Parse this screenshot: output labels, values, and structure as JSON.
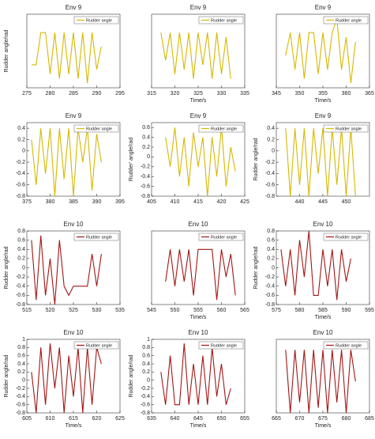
{
  "chart_data": [
    {
      "type": "line",
      "title": "Env 9",
      "ylabel": "Rudder angle/rad",
      "xlim": [
        275,
        295
      ],
      "xticks": [
        275,
        280,
        285,
        290,
        295
      ],
      "ylim": [
        -0.8,
        0.8
      ],
      "series": [
        {
          "name": "Rudder angle",
          "color": "#d6b800",
          "x": [
            276,
            277,
            278,
            279,
            280,
            281,
            282,
            283,
            284,
            285,
            286,
            287,
            288,
            289,
            290,
            291
          ],
          "values": [
            -0.3,
            -0.3,
            0.4,
            0.4,
            -0.5,
            0.4,
            -0.6,
            0.4,
            -0.5,
            0.4,
            -0.6,
            0.4,
            -0.7,
            0.4,
            -0.4,
            0.1
          ]
        }
      ]
    },
    {
      "type": "line",
      "title": "Env 9",
      "xlabel": "Time/s",
      "xlim": [
        315,
        335
      ],
      "xticks": [
        315,
        320,
        325,
        330,
        335
      ],
      "ylim": [
        -0.8,
        0.8
      ],
      "series": [
        {
          "name": "Rudder angle",
          "color": "#d6b800",
          "x": [
            317,
            318,
            319,
            320,
            321,
            322,
            323,
            324,
            325,
            326,
            327,
            328,
            329,
            330,
            331,
            332
          ],
          "values": [
            0.4,
            -0.2,
            0.4,
            -0.5,
            0.4,
            -0.4,
            0.4,
            -0.6,
            0.4,
            -0.3,
            0.4,
            -0.6,
            0.4,
            -0.5,
            0.3,
            -0.6
          ]
        }
      ]
    },
    {
      "type": "line",
      "title": "Env 9",
      "xlabel": "Time/s",
      "xlim": [
        345,
        365
      ],
      "xticks": [
        345,
        350,
        355,
        360,
        365
      ],
      "ylim": [
        -0.8,
        0.8
      ],
      "series": [
        {
          "name": "Rudder angle",
          "color": "#d6b800",
          "x": [
            347,
            348,
            349,
            350,
            351,
            352,
            353,
            354,
            355,
            356,
            357,
            358,
            359,
            360,
            361,
            362
          ],
          "values": [
            -0.1,
            0.4,
            -0.4,
            0.4,
            -0.6,
            0.4,
            0.4,
            -0.5,
            0.4,
            -0.4,
            0.4,
            0.7,
            -0.4,
            0.3,
            -0.7,
            0.2
          ]
        }
      ]
    },
    {
      "type": "line",
      "title": "Env 9",
      "xlim": [
        375,
        395
      ],
      "xticks": [
        375,
        380,
        385,
        390,
        395
      ],
      "ylim": [
        -0.8,
        0.5
      ],
      "yticks": [
        -0.8,
        -0.6,
        -0.4,
        -0.2,
        0,
        0.2,
        0.4
      ],
      "series": [
        {
          "name": "Rudder angle",
          "color": "#d6b800",
          "x": [
            376,
            377,
            378,
            379,
            380,
            381,
            382,
            383,
            384,
            385,
            386,
            387,
            388,
            389,
            390,
            391
          ],
          "values": [
            0.2,
            -0.6,
            0.4,
            -0.4,
            0.4,
            -0.8,
            0.4,
            -0.5,
            0.4,
            -0.8,
            0.4,
            -0.2,
            0.4,
            -0.7,
            0.3,
            -0.2
          ]
        }
      ]
    },
    {
      "type": "line",
      "title": "Env 9",
      "ylabel": "Rudder' angle/rad",
      "xlim": [
        405,
        425
      ],
      "xticks": [
        405,
        410,
        415,
        420,
        425
      ],
      "ylim": [
        -0.8,
        0.7
      ],
      "yticks": [
        -0.8,
        -0.6,
        -0.4,
        -0.2,
        0,
        0.2,
        0.4,
        0.6
      ],
      "series": [
        {
          "name": "Rudder angle",
          "color": "#d6b800",
          "x": [
            408,
            409,
            410,
            411,
            412,
            413,
            414,
            415,
            416,
            417,
            418,
            419,
            420,
            421,
            422,
            423
          ],
          "values": [
            0.4,
            -0.2,
            0.6,
            -0.4,
            0.4,
            -0.6,
            0.5,
            -0.2,
            0.4,
            -0.8,
            0.4,
            -0.4,
            0.6,
            -0.6,
            0.2,
            -0.3
          ]
        }
      ]
    },
    {
      "type": "line",
      "title": "Env 9",
      "ylabel": "Rudder angle/rad",
      "xlim": [
        435,
        455
      ],
      "xticks": [
        440,
        445,
        450
      ],
      "ylim": [
        -0.8,
        0.5
      ],
      "yticks": [
        -0.8,
        -0.6,
        -0.4,
        -0.2,
        0,
        0.2,
        0.4
      ],
      "series": [
        {
          "name": "Rudder angle",
          "color": "#d6b800",
          "x": [
            437,
            438,
            439,
            440,
            441,
            442,
            443,
            444,
            445,
            446,
            447,
            448,
            449,
            450,
            451,
            452
          ],
          "values": [
            0.4,
            -0.8,
            0.4,
            -0.6,
            0.4,
            -0.8,
            0.4,
            -0.4,
            0.4,
            -0.8,
            0.4,
            -0.6,
            0.4,
            -0.8,
            0.4,
            -0.8
          ]
        }
      ]
    },
    {
      "type": "line",
      "title": "Env 10",
      "ylabel": "Rudder angle/rad",
      "xlim": [
        515,
        535
      ],
      "xticks": [
        515,
        520,
        525,
        530,
        535
      ],
      "ylim": [
        -0.8,
        0.8
      ],
      "yticks": [
        -0.8,
        -0.6,
        -0.4,
        -0.2,
        0,
        0.2,
        0.4,
        0.6,
        0.8
      ],
      "series": [
        {
          "name": "Rudder angle",
          "color": "#a31515",
          "x": [
            516,
            517,
            518,
            519,
            520,
            521,
            522,
            523,
            524,
            525,
            526,
            527,
            528,
            529,
            530,
            531
          ],
          "values": [
            0.6,
            -0.7,
            0.7,
            -0.6,
            0.2,
            -0.8,
            0.6,
            -0.4,
            -0.6,
            -0.4,
            -0.4,
            -0.4,
            -0.4,
            0.3,
            -0.4,
            0.3
          ]
        }
      ]
    },
    {
      "type": "line",
      "title": "Env 10",
      "xlabel": "Time/s",
      "xlim": [
        545,
        565
      ],
      "xticks": [
        545,
        550,
        555,
        560,
        565
      ],
      "ylim": [
        -0.8,
        0.8
      ],
      "series": [
        {
          "name": "Rudder angle",
          "color": "#a31515",
          "x": [
            548,
            549,
            550,
            551,
            552,
            553,
            554,
            555,
            556,
            557,
            558,
            559,
            560,
            561,
            562,
            563
          ],
          "values": [
            -0.3,
            0.4,
            -0.4,
            0.4,
            -0.3,
            0.4,
            -0.6,
            0.4,
            0.4,
            0.4,
            0.4,
            -0.7,
            0.4,
            -0.2,
            0.3,
            -0.6
          ]
        }
      ]
    },
    {
      "type": "line",
      "title": "Env 10",
      "ylabel": "Rudder angle/rad",
      "xlabel": "Time/s",
      "xlim": [
        575,
        595
      ],
      "xticks": [
        575,
        580,
        585,
        590,
        595
      ],
      "ylim": [
        -0.8,
        0.8
      ],
      "yticks": [
        -0.8,
        -0.6,
        -0.4,
        -0.2,
        0,
        0.2,
        0.4,
        0.6,
        0.8
      ],
      "series": [
        {
          "name": "Rudder angle",
          "color": "#a31515",
          "x": [
            576,
            577,
            578,
            579,
            580,
            581,
            582,
            583,
            584,
            585,
            586,
            587,
            588,
            589,
            590,
            591
          ],
          "values": [
            0.4,
            -0.4,
            0.4,
            -0.6,
            0.6,
            -0.2,
            0.8,
            -0.6,
            -0.6,
            0.4,
            -0.4,
            0.4,
            -0.7,
            0.4,
            -0.3,
            0.2
          ]
        }
      ]
    },
    {
      "type": "line",
      "title": "Env 10",
      "ylabel": "Rudder angle/rad",
      "xlabel": "Time/s",
      "xlim": [
        605,
        625
      ],
      "xticks": [
        605,
        610,
        615,
        620,
        625
      ],
      "ylim": [
        -0.8,
        1
      ],
      "yticks": [
        -0.8,
        -0.6,
        -0.4,
        -0.2,
        0,
        0.2,
        0.4,
        0.6,
        0.8,
        1
      ],
      "series": [
        {
          "name": "Rudder angle",
          "color": "#a31515",
          "x": [
            606,
            607,
            608,
            609,
            610,
            611,
            612,
            613,
            614,
            615,
            616,
            617,
            618,
            619,
            620,
            621
          ],
          "values": [
            0.2,
            -0.8,
            0.8,
            -0.6,
            0.9,
            -0.2,
            0.8,
            -0.8,
            0.6,
            -0.4,
            0.8,
            -0.8,
            0.8,
            -0.6,
            0.8,
            0.4
          ]
        }
      ]
    },
    {
      "type": "line",
      "title": "Env 10",
      "ylabel": "Rudder angle/rad",
      "xlabel": "Time/s",
      "xlim": [
        635,
        655
      ],
      "xticks": [
        635,
        640,
        645,
        650,
        655
      ],
      "ylim": [
        -0.8,
        1
      ],
      "yticks": [
        -0.8,
        -0.6,
        -0.4,
        -0.2,
        0,
        0.2,
        0.4,
        0.6,
        0.8,
        1
      ],
      "series": [
        {
          "name": "Rudder angle",
          "color": "#a31515",
          "x": [
            637,
            638,
            639,
            640,
            641,
            642,
            643,
            644,
            645,
            646,
            647,
            648,
            649,
            650,
            651,
            652
          ],
          "values": [
            0.2,
            -0.6,
            0.6,
            -0.6,
            -0.6,
            0.9,
            -0.6,
            0.4,
            -0.6,
            0.6,
            -0.6,
            0.8,
            -0.4,
            0.4,
            -0.6,
            -0.2
          ]
        }
      ]
    },
    {
      "type": "line",
      "title": "Env 10",
      "xlabel": "Time/s",
      "xlim": [
        665,
        685
      ],
      "xticks": [
        665,
        670,
        675,
        680,
        685
      ],
      "ylim": [
        -0.8,
        0.6
      ],
      "series": [
        {
          "name": "Rudder angle",
          "color": "#a31515",
          "x": [
            667,
            668,
            669,
            670,
            671,
            672,
            673,
            674,
            675,
            676,
            677,
            678,
            679,
            680,
            681,
            682
          ],
          "values": [
            0.4,
            -0.8,
            0.4,
            -0.6,
            0.4,
            -0.8,
            0.4,
            -0.7,
            0.4,
            -0.8,
            0.4,
            -0.6,
            0.4,
            -0.8,
            0.4,
            -0.2
          ]
        }
      ]
    }
  ]
}
